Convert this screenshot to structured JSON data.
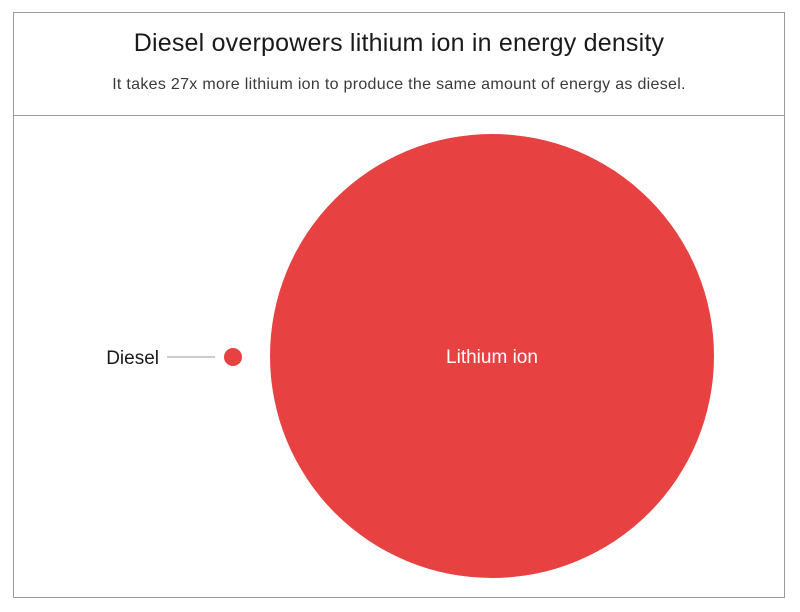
{
  "title": "Diesel overpowers lithium ion in energy density",
  "subtitle": "It takes 27x more lithium ion to produce the same amount of energy as diesel.",
  "colors": {
    "accent": "#e84142",
    "text": "#1a1a1a",
    "leader": "#9a9a9a"
  },
  "chart_data": {
    "type": "bubble",
    "title": "Diesel overpowers lithium ion in energy density",
    "subtitle": "It takes 27x more lithium ion to produce the same amount of energy as diesel.",
    "series": [
      {
        "name": "Diesel",
        "value": 1
      },
      {
        "name": "Lithium ion",
        "value": 27
      }
    ],
    "ratio": 27,
    "diesel_label": "Diesel",
    "lithium_label": "Lithium ion"
  }
}
